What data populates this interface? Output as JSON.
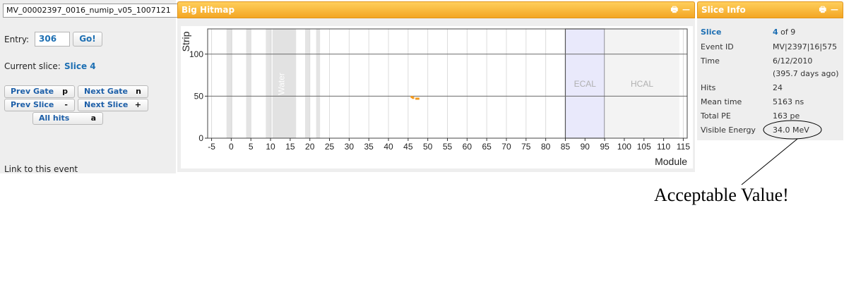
{
  "controls": {
    "file_name": "MV_00002397_0016_numip_v05_1007121",
    "entry_label": "Entry:",
    "entry_value": "306",
    "go_label": "Go!",
    "current_slice_label": "Current slice:",
    "current_slice_value": "Slice 4",
    "buttons": {
      "prev_gate": "Prev Gate",
      "prev_gate_key": "p",
      "next_gate": "Next Gate",
      "next_gate_key": "n",
      "prev_slice": "Prev Slice",
      "prev_slice_key": "-",
      "next_slice": "Next Slice",
      "next_slice_key": "+",
      "all_hits": "All hits",
      "all_hits_key": "a"
    },
    "link_text": "Link to this event"
  },
  "hitmap": {
    "title": "Big Hitmap",
    "icons": [
      "print-icon",
      "minimize-icon"
    ],
    "colors": {
      "header": "#f5ad2c",
      "hit": "#f39a1e",
      "ecal": "#e9e9fb",
      "hcal": "#f3f3f3",
      "water": "#e2e2e2"
    }
  },
  "chart_data": {
    "type": "scatter",
    "xlabel": "Module",
    "ylabel": "Strip",
    "xlim": [
      -6,
      116
    ],
    "ylim": [
      0,
      130
    ],
    "x_ticks": [
      -5,
      0,
      5,
      10,
      15,
      20,
      25,
      30,
      35,
      40,
      45,
      50,
      55,
      60,
      65,
      70,
      75,
      80,
      85,
      90,
      95,
      100,
      105,
      110,
      115
    ],
    "y_ticks": [
      0,
      50,
      100
    ],
    "regions": [
      {
        "label": "Water",
        "x0": 10.5,
        "x1": 16.5,
        "color": "#e2e2e2"
      },
      {
        "label": "ECAL",
        "x0": 85,
        "x1": 95,
        "color": "#e9e9fb"
      },
      {
        "label": "HCAL",
        "x0": 95,
        "x1": 114,
        "color": "#f3f3f3"
      }
    ],
    "gray_bands": [
      [
        -1.2,
        0.3
      ],
      [
        3.8,
        5.0
      ],
      [
        8.8,
        10.3
      ],
      [
        18.8,
        20.0
      ],
      [
        21.6,
        22.6
      ]
    ],
    "points": [
      {
        "x": 46.0,
        "y": 49
      },
      {
        "x": 46.3,
        "y": 48
      },
      {
        "x": 47.2,
        "y": 47
      },
      {
        "x": 47.6,
        "y": 47
      }
    ]
  },
  "slice_info": {
    "title": "Slice Info",
    "icons": [
      "print-icon",
      "minimize-icon"
    ],
    "rows": [
      {
        "label": "Slice",
        "value": "4",
        "suffix": " of 9"
      },
      {
        "label": "Event ID",
        "value": "MV|2397|16|575"
      },
      {
        "label": "Time",
        "value": "6/12/2010",
        "extra": "(395.7 days ago)"
      },
      {
        "label": "Hits",
        "value": "24"
      },
      {
        "label": "Mean time",
        "value": "5163 ns"
      },
      {
        "label": "Total PE",
        "value": "163 pe"
      },
      {
        "label": "Visible Energy",
        "value": "34.0 MeV"
      }
    ]
  },
  "annotation": {
    "text": "Acceptable Value!"
  }
}
